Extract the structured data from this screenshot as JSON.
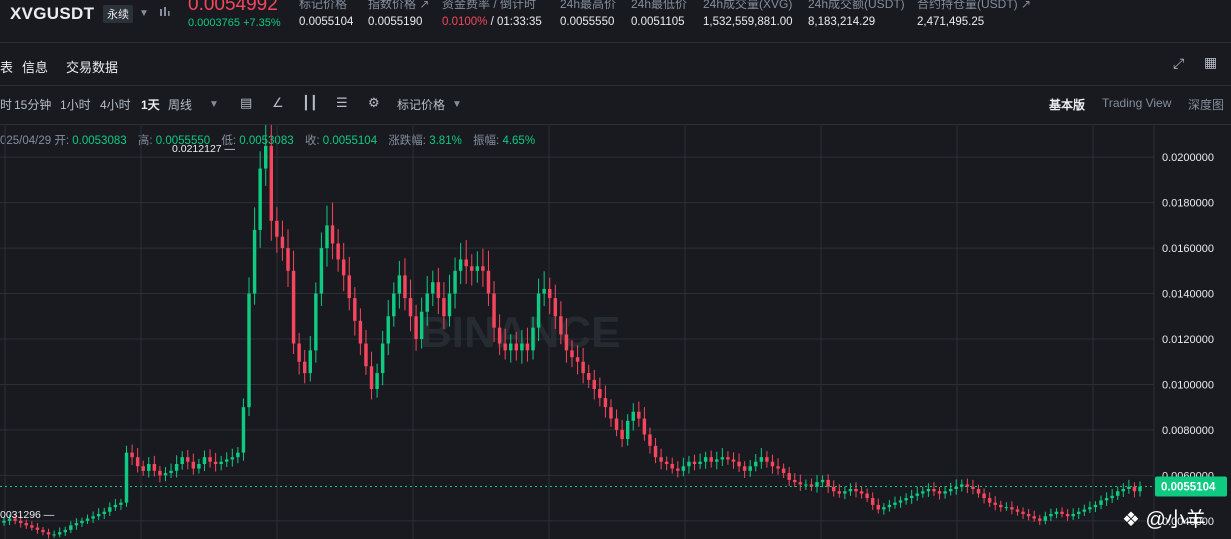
{
  "ticker": {
    "symbol": "XVGUSDT",
    "badge": "永续",
    "last_price": "0.0054992",
    "change": "0.0003765",
    "change_pct": "+7.35%",
    "stats": [
      {
        "label": "标记价格",
        "value": "0.0055104"
      },
      {
        "label": "指数价格 ↗",
        "value": "0.0055190"
      },
      {
        "label": "资金费率 / 倒计时",
        "value_rate": "0.0100%",
        "value_time": " / 01:33:35"
      },
      {
        "label": "24h最高价",
        "value": "0.0055550"
      },
      {
        "label": "24h最低价",
        "value": "0.0051105"
      },
      {
        "label": "24h成交量(XVG)",
        "value": "1,532,559,881.00"
      },
      {
        "label": "24h成交额(USDT)",
        "value": "8,183,214.29"
      },
      {
        "label": "合约持仓量(USDT) ↗",
        "value": "2,471,495.25"
      }
    ]
  },
  "tabs": [
    "表",
    "信息",
    "交易数据"
  ],
  "toolbar": {
    "timeframes": [
      "时",
      "15分钟",
      "1小时",
      "4小时",
      "1天",
      "周线"
    ],
    "active": "1天",
    "price_type": "标记价格",
    "views": [
      "基本版",
      "Trading View",
      "深度图"
    ],
    "active_view": "基本版"
  },
  "ohlc": {
    "date": "025/04/29",
    "open_label": "开:",
    "open": "0.0053083",
    "high_label": "高:",
    "high": "0.0055550",
    "low_label": "低:",
    "low": "0.0053083",
    "close_label": "收:",
    "close": "0.0055104",
    "chg_label": "涨跌幅:",
    "chg": "3.81%",
    "amp_label": "振幅:",
    "amp": "4.65%"
  },
  "colors": {
    "up": "#0ecb81",
    "down": "#f6465d",
    "bg": "#181a20",
    "grid": "#2b2f36",
    "axis_text": "#eaecef"
  },
  "chart_data": {
    "type": "candlestick",
    "ylim": [
      0.0032,
      0.0208
    ],
    "y_ticks": [
      0.004,
      0.006,
      0.008,
      0.01,
      0.012,
      0.014,
      0.016,
      0.018,
      0.02
    ],
    "y_tick_labels": [
      "0.0040000",
      "0.0060000",
      "0.0080000",
      "0.0100000",
      "0.0120000",
      "0.0140000",
      "0.0160000",
      "0.0180000",
      "0.0200000"
    ],
    "current_price": 0.0055104,
    "current_price_label": "0.0055104",
    "max_label": "0.0212127",
    "min_label": "0031296",
    "brand_watermark": "BINANCE",
    "closes": [
      0.004,
      0.0041,
      0.004,
      0.0039,
      0.0038,
      0.0037,
      0.0036,
      0.0035,
      0.0034,
      0.0034,
      0.0035,
      0.0036,
      0.0038,
      0.0039,
      0.004,
      0.0041,
      0.0042,
      0.0043,
      0.0044,
      0.0046,
      0.0047,
      0.0048,
      0.007,
      0.0068,
      0.0064,
      0.0062,
      0.0065,
      0.0062,
      0.006,
      0.0061,
      0.0062,
      0.0065,
      0.0068,
      0.0066,
      0.0063,
      0.0065,
      0.0068,
      0.0066,
      0.0065,
      0.0066,
      0.0067,
      0.0068,
      0.007,
      0.009,
      0.014,
      0.0168,
      0.0195,
      0.0205,
      0.0172,
      0.0165,
      0.016,
      0.015,
      0.0118,
      0.011,
      0.0105,
      0.0115,
      0.014,
      0.016,
      0.017,
      0.0162,
      0.0155,
      0.0148,
      0.0138,
      0.0128,
      0.0118,
      0.0108,
      0.0098,
      0.0105,
      0.0118,
      0.013,
      0.014,
      0.0148,
      0.0138,
      0.013,
      0.012,
      0.0132,
      0.014,
      0.0145,
      0.0138,
      0.013,
      0.014,
      0.015,
      0.0155,
      0.0152,
      0.015,
      0.0152,
      0.015,
      0.014,
      0.0125,
      0.0118,
      0.0115,
      0.0118,
      0.0115,
      0.0118,
      0.0115,
      0.0125,
      0.014,
      0.0142,
      0.0138,
      0.013,
      0.0122,
      0.0115,
      0.0112,
      0.011,
      0.0105,
      0.0102,
      0.0098,
      0.0094,
      0.009,
      0.0085,
      0.008,
      0.0076,
      0.0084,
      0.0088,
      0.0085,
      0.0078,
      0.0073,
      0.0068,
      0.0066,
      0.0065,
      0.0063,
      0.0062,
      0.0064,
      0.0066,
      0.0065,
      0.0066,
      0.0068,
      0.0066,
      0.0067,
      0.0068,
      0.0067,
      0.0066,
      0.0064,
      0.0062,
      0.0064,
      0.0066,
      0.0068,
      0.0066,
      0.0064,
      0.0063,
      0.0061,
      0.0058,
      0.0057,
      0.0056,
      0.0056,
      0.0055,
      0.0057,
      0.0058,
      0.0055,
      0.0053,
      0.0052,
      0.0053,
      0.0054,
      0.0053,
      0.0052,
      0.005,
      0.0047,
      0.0045,
      0.0046,
      0.0047,
      0.0048,
      0.0049,
      0.005,
      0.0051,
      0.0052,
      0.0053,
      0.0054,
      0.0053,
      0.0052,
      0.0053,
      0.0054,
      0.0055,
      0.0056,
      0.0055,
      0.0054,
      0.0052,
      0.005,
      0.0048,
      0.0047,
      0.0046,
      0.0046,
      0.0045,
      0.0044,
      0.0043,
      0.0042,
      0.0041,
      0.004,
      0.0042,
      0.0043,
      0.0044,
      0.0043,
      0.0042,
      0.0043,
      0.0044,
      0.0045,
      0.0046,
      0.0047,
      0.0049,
      0.005,
      0.0051,
      0.0053,
      0.0054,
      0.0055,
      0.0053,
      0.0055
    ]
  }
}
